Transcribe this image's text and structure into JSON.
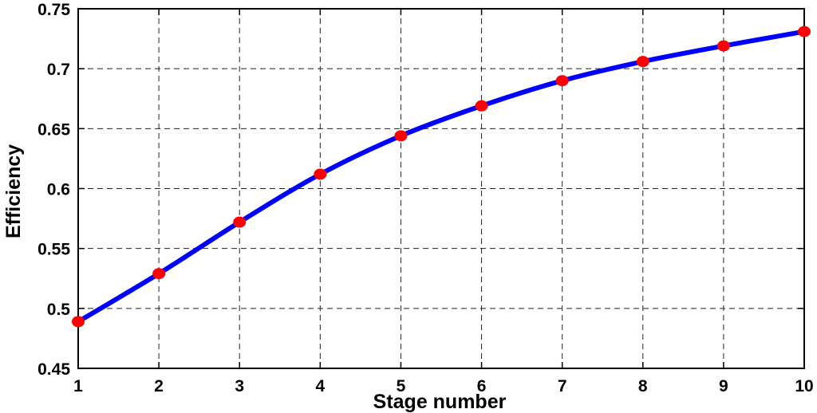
{
  "chart_data": {
    "type": "line",
    "xlabel": "Stage number",
    "ylabel": "Efficiency",
    "xlim": [
      1,
      10
    ],
    "ylim": [
      0.45,
      0.75
    ],
    "x_ticks": [
      1,
      2,
      3,
      4,
      5,
      6,
      7,
      8,
      9,
      10
    ],
    "y_ticks": [
      0.45,
      0.5,
      0.55,
      0.6,
      0.65,
      0.7,
      0.75
    ],
    "x_tick_labels": [
      "1",
      "2",
      "3",
      "4",
      "5",
      "6",
      "7",
      "8",
      "9",
      "10"
    ],
    "y_tick_labels": [
      "0.45",
      "0.5",
      "0.55",
      "0.6",
      "0.65",
      "0.7",
      "0.75"
    ],
    "grid": true,
    "series": [
      {
        "x": [
          1,
          2,
          3,
          4,
          5,
          6,
          7,
          8,
          9,
          10
        ],
        "values": [
          0.489,
          0.529,
          0.572,
          0.612,
          0.644,
          0.669,
          0.69,
          0.706,
          0.719,
          0.731
        ],
        "line_color": "#0000ff",
        "marker_color": "#ff0000"
      }
    ]
  }
}
